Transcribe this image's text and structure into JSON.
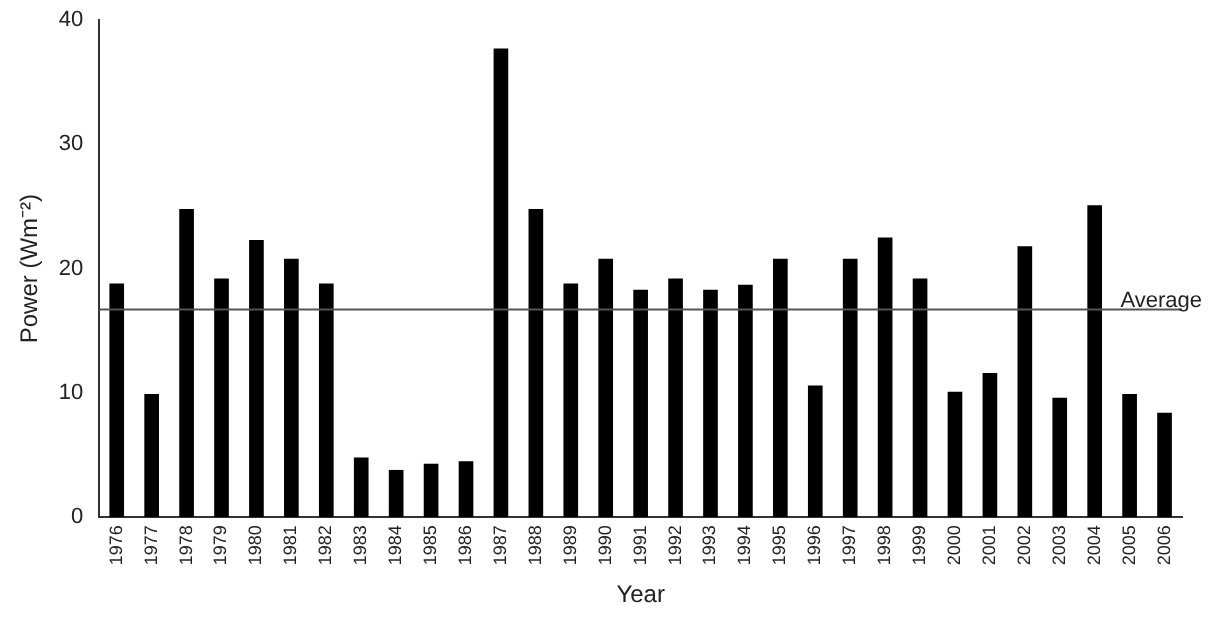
{
  "chart_data": {
    "type": "bar",
    "xlabel": "Year",
    "ylabel": "Power (Wm⁻²)",
    "categories": [
      "1976",
      "1977",
      "1978",
      "1979",
      "1980",
      "1981",
      "1982",
      "1983",
      "1984",
      "1985",
      "1986",
      "1987",
      "1988",
      "1989",
      "1990",
      "1991",
      "1992",
      "1993",
      "1994",
      "1995",
      "1996",
      "1997",
      "1998",
      "1999",
      "2000",
      "2001",
      "2002",
      "2003",
      "2004",
      "2005",
      "2006"
    ],
    "values": [
      18.8,
      9.9,
      24.8,
      19.2,
      22.3,
      20.8,
      18.8,
      4.8,
      3.8,
      4.3,
      4.5,
      37.7,
      24.8,
      18.8,
      20.8,
      18.3,
      19.2,
      18.3,
      18.7,
      20.8,
      10.6,
      20.8,
      22.5,
      19.2,
      10.1,
      11.6,
      21.8,
      9.6,
      25.1,
      9.9,
      8.4
    ],
    "color": "#000000",
    "ylim": [
      0,
      40
    ],
    "yticks": [
      0,
      10,
      20,
      30,
      40
    ],
    "grid": false,
    "legend": false,
    "ref_lines": [
      {
        "axis": "y",
        "value": 16.7,
        "label": "Average",
        "color": "#555555"
      }
    ]
  }
}
